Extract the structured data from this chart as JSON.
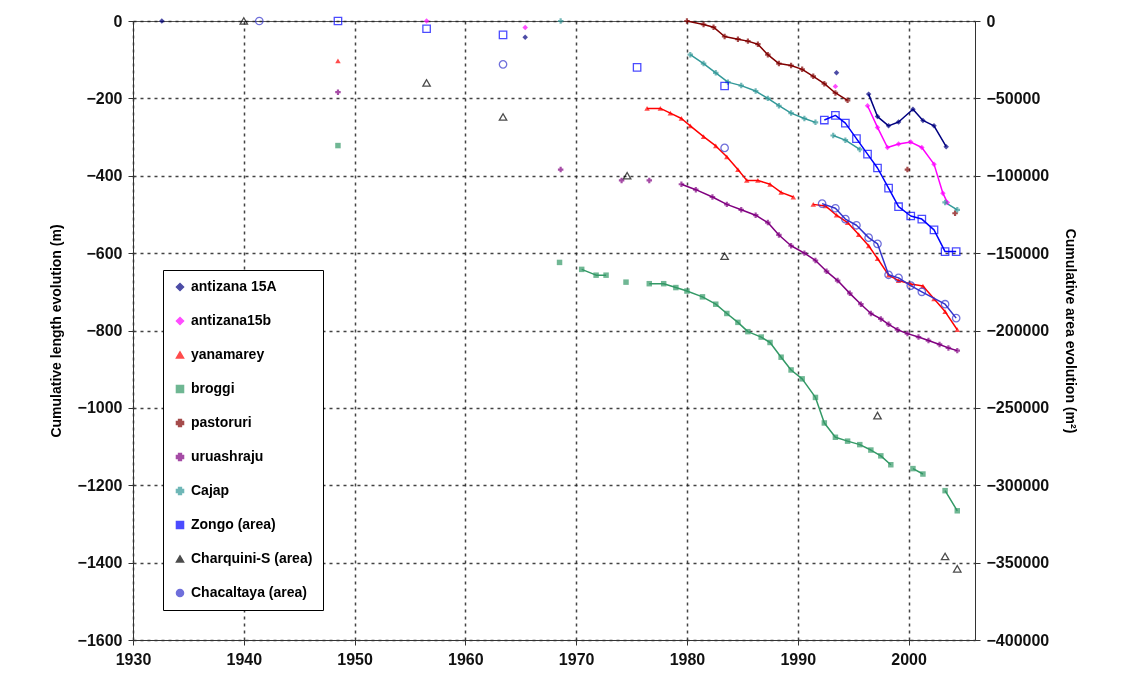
{
  "chart_data": {
    "type": "line",
    "ylabel": "Cumulative length evolution  (m)",
    "y2label": "Cumulative area evolution (m²)",
    "xlim": [
      1930,
      2006
    ],
    "xticks": [
      1930,
      1940,
      1950,
      1960,
      1970,
      1980,
      1990,
      2000
    ],
    "ylim": [
      -1600,
      0
    ],
    "yticks": [
      -1600,
      -1400,
      -1200,
      -1000,
      -800,
      -600,
      -400,
      -200,
      0
    ],
    "y2lim": [
      -400000,
      0
    ],
    "y2ticks": [
      -400000,
      -350000,
      -300000,
      -250000,
      -200000,
      -150000,
      -100000,
      -50000,
      0
    ],
    "grid": true,
    "legend": "bottom left",
    "series": [
      {
        "name": "antizana 15A",
        "color": "#000080",
        "marker": "diamond",
        "x": [
          1932.6,
          1950,
          1965.4,
          1980,
          1993.5,
          1995,
          1996.4,
          1997.2,
          1998.2,
          1999.1,
          2000.4,
          2001.3,
          2002.3,
          2003.4
        ],
        "values": [
          0,
          null,
          -42,
          null,
          -134,
          null,
          -189,
          -247,
          -271,
          -261,
          -228,
          -257,
          -271,
          -325
        ]
      },
      {
        "name": "antizana15b",
        "color": "#ff00ff",
        "marker": "diamond",
        "x": [
          1956.5,
          1960,
          1965.4,
          1980,
          1993.4,
          1995,
          1996.3,
          1997.2,
          1998.1,
          1999.1,
          2000.2,
          2001.2,
          2002.3,
          2003.1,
          2003.5
        ],
        "values": [
          0,
          null,
          -17,
          null,
          -169,
          null,
          -219,
          -275,
          -327,
          -318,
          -313,
          -327,
          -370,
          -445,
          -469
        ]
      },
      {
        "name": "yanamarey",
        "color": "#ff0000",
        "marker": "triangle",
        "x": [
          1948.5,
          1960,
          1976.4,
          1977.6,
          1978.5,
          1979.5,
          1980.3,
          1981.5,
          1982.6,
          1983.6,
          1984.6,
          1985.4,
          1986.4,
          1987.5,
          1988.5,
          1989.6,
          1990.5,
          1991.4,
          1992.5,
          1993.5,
          1994.5,
          1995.5,
          1996.4,
          1997.2,
          1998.2,
          1999.1,
          2000.2,
          2001.3,
          2002.3,
          2003.3,
          2004.4
        ],
        "values": [
          -103,
          null,
          -226,
          -226,
          -238,
          -252,
          -271,
          -299,
          -323,
          -351,
          -384,
          -412,
          -412,
          -422,
          -443,
          -455,
          null,
          -474,
          -478,
          -502,
          -521,
          -552,
          -581,
          -614,
          -657,
          -671,
          -680,
          -685,
          -718,
          -751,
          -798
        ]
      },
      {
        "name": "broggi",
        "color": "#339966",
        "marker": "square",
        "x": [
          1948.5,
          1958,
          1968.5,
          1969.5,
          1970.5,
          1971.8,
          1972.7,
          1973.6,
          1974.5,
          1975.5,
          1976.6,
          1977.9,
          1979,
          1980,
          1981.4,
          1982.6,
          1983.6,
          1984.6,
          1985.5,
          1986.7,
          1987.5,
          1988.5,
          1989.4,
          1990.4,
          1991.6,
          1992.4,
          1993.4,
          1994.5,
          1995.6,
          1996.6,
          1997.5,
          1998.4,
          1999.4,
          2000.4,
          2001.3,
          2002.3,
          2003.3,
          2004.4
        ],
        "values": [
          -322,
          null,
          -624,
          null,
          -642,
          -657,
          -657,
          null,
          -675,
          null,
          -679,
          -679,
          -689,
          -698,
          -713,
          -732,
          -756,
          -779,
          -803,
          -817,
          -831,
          -869,
          -902,
          -925,
          -973,
          -1039,
          -1076,
          -1086,
          -1095,
          -1109,
          -1124,
          -1147,
          null,
          -1157,
          -1171,
          null,
          -1214,
          -1266
        ]
      },
      {
        "name": "pastoruri",
        "color": "#800000",
        "marker": "cross",
        "x": [
          1980,
          1981.5,
          1982.4,
          1983.4,
          1984.6,
          1985.5,
          1986.4,
          1987.3,
          1988.3,
          1989.4,
          1990.4,
          1991.4,
          1992.4,
          1993.4,
          1994.5,
          1997,
          1999.9,
          2002,
          2004.2
        ],
        "values": [
          0,
          -9,
          -16,
          -40,
          -47,
          -52,
          -60,
          -87,
          -110,
          -115,
          -125,
          -143,
          -162,
          -186,
          -205,
          null,
          -384,
          null,
          -497
        ]
      },
      {
        "name": "uruashraju",
        "color": "#800080",
        "marker": "cross",
        "x": [
          1948.5,
          1958,
          1968.6,
          1971,
          1974.1,
          1975.3,
          1976.6,
          1978,
          1979.5,
          1980.8,
          1982.3,
          1983.6,
          1984.9,
          1986.2,
          1987.3,
          1988.3,
          1989.4,
          1990.6,
          1991.6,
          1992.6,
          1993.6,
          1994.7,
          1995.7,
          1996.6,
          1997.5,
          1998.2,
          1999,
          1999.9,
          2000.9,
          2001.8,
          2002.8,
          2003.6,
          2004.4
        ],
        "values": [
          -184,
          null,
          -384,
          null,
          -412,
          null,
          -412,
          null,
          -422,
          -436,
          -455,
          -474,
          -488,
          -502,
          -521,
          -553,
          -581,
          -600,
          -619,
          -647,
          -671,
          -704,
          -732,
          -756,
          -770,
          -784,
          -798,
          -808,
          -817,
          -826,
          -836,
          -845,
          -852
        ]
      },
      {
        "name": "Cajap",
        "color": "#339999",
        "marker": "cross",
        "x": [
          1968.6,
          1974,
          1980.3,
          1981.5,
          1982.6,
          1983.7,
          1984.9,
          1986.2,
          1987.3,
          1988.3,
          1989.4,
          1990.6,
          1991.6,
          1992.4,
          1993.2,
          1994.3,
          1995.6,
          1999,
          2003.3,
          2004.4
        ],
        "values": [
          0,
          null,
          -87,
          -110,
          -134,
          -158,
          -167,
          -181,
          -200,
          -219,
          -238,
          -252,
          -262,
          null,
          -296,
          -308,
          -332,
          null,
          -469,
          -488
        ]
      },
      {
        "name": "Zongo (area)",
        "color": "#0000ff",
        "marker": "square",
        "axis": "y2",
        "x": [
          1948.5,
          1952,
          1956.5,
          1960,
          1963.4,
          1969,
          1975.5,
          1979,
          1983.4,
          1988,
          1992.4,
          1993.4,
          1994.3,
          1995.3,
          1996.3,
          1997.2,
          1998.2,
          1999.1,
          2000.2,
          2001.2,
          2002.3,
          2003.3,
          2004.3
        ],
        "values": [
          0,
          null,
          -5000,
          null,
          -9000,
          null,
          -30000,
          null,
          -42000,
          null,
          -64000,
          -61000,
          -66000,
          -76000,
          -86000,
          -95000,
          -108000,
          -120000,
          -126000,
          -128000,
          -135000,
          -149000,
          -149000
        ]
      },
      {
        "name": "Charquini-S (area)",
        "color": "#000000",
        "marker": "triangle",
        "type": "scatter",
        "axis": "y2",
        "x": [
          1940,
          1956.5,
          1963.4,
          1974.6,
          1983.4,
          1997.2,
          2003.3,
          2004.4
        ],
        "values": [
          0,
          -40000,
          -62000,
          -100000,
          -152000,
          -255000,
          -346000,
          -354000
        ]
      },
      {
        "name": "Chacaltaya (area)",
        "color": "#3333cc",
        "marker": "circle",
        "axis": "y2",
        "x": [
          1941.4,
          1952,
          1963.4,
          1973,
          1983.4,
          1988,
          1992.2,
          1993.4,
          1994.3,
          1995.3,
          1996.4,
          1997.2,
          1998.2,
          1999.1,
          2000.2,
          2001.2,
          2003.3,
          2004.3
        ],
        "values": [
          0,
          null,
          -28000,
          null,
          -82000,
          null,
          -118000,
          -121000,
          -128000,
          -132000,
          -140000,
          -144000,
          -164000,
          -166000,
          -171000,
          -175000,
          -183000,
          -192000
        ]
      }
    ]
  }
}
